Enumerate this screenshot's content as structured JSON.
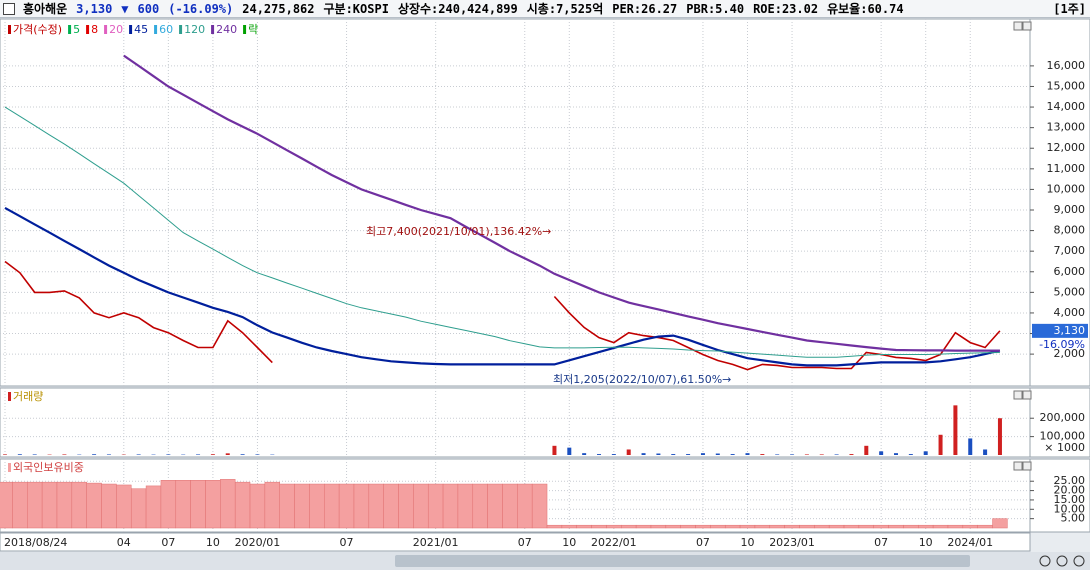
{
  "header": {
    "name": "흥아해운",
    "price": "3,130",
    "arrow": "▼",
    "change": "600",
    "change_pct": "(-16.09%)",
    "volume": "24,275,862",
    "market": "구분:KOSPI",
    "listed": "상장수:240,424,899",
    "cap": "시총:7,525억",
    "per": "PER:26.27",
    "pbr": "PBR:5.40",
    "roe": "ROE:23.02",
    "reserve": "유보율:60.74",
    "period": "[1주]"
  },
  "chart_data": [
    {
      "type": "line",
      "legend": [
        {
          "name": "가격(수정)",
          "color": "#c00000"
        },
        {
          "name": "5",
          "color": "#00b050"
        },
        {
          "name": "8",
          "color": "#e00000"
        },
        {
          "name": "20",
          "color": "#e060c0"
        },
        {
          "name": "45",
          "color": "#001f9c"
        },
        {
          "name": "60",
          "color": "#33aadd"
        },
        {
          "name": "120",
          "color": "#2e9e8e"
        },
        {
          "name": "240",
          "color": "#7030a0"
        },
        {
          "name": "락",
          "color": "#00a000"
        }
      ],
      "series": [
        {
          "color": "#c00000",
          "values": [
            6500,
            5950,
            5000,
            5000,
            5070,
            4730,
            4000,
            3770,
            4000,
            3770,
            3290,
            3040,
            2660,
            2320,
            2320,
            3620,
            3040,
            2320,
            1590,
            null,
            null,
            null,
            null,
            null,
            null,
            null,
            null,
            null,
            null,
            null,
            null,
            null,
            null,
            null,
            null,
            null,
            null,
            4800,
            4000,
            3300,
            2800,
            2560,
            3040,
            2900,
            2800,
            2660,
            2320,
            1980,
            1690,
            1500,
            1250,
            1500,
            1450,
            1350,
            1350,
            1350,
            1300,
            1300,
            2080,
            1980,
            1840,
            1790,
            1690,
            1980,
            3040,
            2560,
            2320,
            3130
          ]
        },
        {
          "color": "#001f9c",
          "values": [
            9100,
            8700,
            8300,
            7900,
            7500,
            7100,
            6700,
            6300,
            5950,
            5600,
            5300,
            5000,
            4750,
            4500,
            4250,
            4050,
            3800,
            3400,
            3050,
            2800,
            2550,
            2320,
            2150,
            2000,
            1850,
            1750,
            1650,
            1600,
            1550,
            1520,
            1500,
            1500,
            1500,
            1500,
            1500,
            1500,
            1500,
            1500,
            1700,
            1900,
            2100,
            2300,
            2500,
            2700,
            2850,
            2900,
            2700,
            2450,
            2200,
            2000,
            1800,
            1700,
            1600,
            1500,
            1450,
            1450,
            1450,
            1500,
            1550,
            1600,
            1600,
            1600,
            1600,
            1650,
            1750,
            1850,
            2000,
            2170
          ]
        },
        {
          "color": "#2e9e8e",
          "values": [
            14000,
            13550,
            13100,
            12650,
            12200,
            11730,
            11250,
            10780,
            10300,
            9700,
            9100,
            8500,
            7900,
            7500,
            7100,
            6700,
            6300,
            5950,
            5700,
            5450,
            5200,
            4950,
            4700,
            4450,
            4250,
            4100,
            3950,
            3800,
            3600,
            3450,
            3300,
            3150,
            3000,
            2850,
            2650,
            2500,
            2350,
            2300,
            2300,
            2300,
            2320,
            2330,
            2330,
            2300,
            2280,
            2250,
            2200,
            2170,
            2150,
            2100,
            2050,
            2000,
            1950,
            1900,
            1850,
            1850,
            1850,
            1900,
            1950,
            1980,
            1980,
            1980,
            1980,
            2000,
            2030,
            2050,
            2070,
            2080
          ]
        },
        {
          "color": "#7030a0",
          "values": [
            null,
            null,
            null,
            null,
            null,
            null,
            null,
            null,
            16500,
            16000,
            15500,
            15000,
            14600,
            14200,
            13800,
            13400,
            13050,
            12700,
            12300,
            11900,
            11500,
            11100,
            10700,
            10350,
            10000,
            9750,
            9500,
            9250,
            9000,
            8800,
            8600,
            8200,
            7800,
            7400,
            7000,
            6650,
            6300,
            5900,
            5600,
            5300,
            5000,
            4750,
            4500,
            4330,
            4170,
            4000,
            3830,
            3670,
            3500,
            3360,
            3220,
            3080,
            2940,
            2800,
            2660,
            2580,
            2500,
            2420,
            2340,
            2270,
            2200,
            2190,
            2180,
            2180,
            2170,
            2170,
            2170,
            2170
          ]
        }
      ],
      "ylim": [
        500,
        17500
      ],
      "yticks": [
        {
          "value": 2000,
          "label": "2,000"
        },
        {
          "value": 3000,
          "label": "3,000"
        },
        {
          "value": 4000,
          "label": "4,000"
        },
        {
          "value": 5000,
          "label": "5,000"
        },
        {
          "value": 6000,
          "label": "6,000"
        },
        {
          "value": 7000,
          "label": "7,000"
        },
        {
          "value": 8000,
          "label": "8,000"
        },
        {
          "value": 9000,
          "label": "9,000"
        },
        {
          "value": 10000,
          "label": "10,000"
        },
        {
          "value": 11000,
          "label": "11,000"
        },
        {
          "value": 12000,
          "label": "12,000"
        },
        {
          "value": 13000,
          "label": "13,000"
        },
        {
          "value": 14000,
          "label": "14,000"
        },
        {
          "value": 15000,
          "label": "15,000"
        },
        {
          "value": 16000,
          "label": "16,000"
        }
      ],
      "annotations": [
        "최고7,400(2021/10/01),136.42%→",
        "최저1,205(2022/10/07),61.50%→"
      ],
      "last_label": "3,130",
      "change_label": "-16.09%",
      "grid": true
    },
    {
      "type": "bar",
      "title": "거래량",
      "unit": "× 1000",
      "color": "#d02020",
      "color_down": "#1a4fc0",
      "values": [
        3000,
        4000,
        3000,
        2000,
        3000,
        2000,
        4000,
        3000,
        2000,
        3000,
        2000,
        3000,
        2000,
        3000,
        4000,
        9000,
        4000,
        3000,
        2000,
        null,
        null,
        null,
        null,
        null,
        null,
        null,
        null,
        null,
        null,
        null,
        null,
        null,
        null,
        null,
        null,
        null,
        null,
        50000,
        40000,
        10000,
        5000,
        5000,
        30000,
        10000,
        8000,
        5000,
        5000,
        10000,
        8000,
        5000,
        10000,
        5000,
        3000,
        3000,
        3000,
        3000,
        3000,
        5000,
        50000,
        20000,
        10000,
        5000,
        20000,
        110000,
        270000,
        90000,
        30000,
        200000
      ],
      "ylim": [
        0,
        310000
      ],
      "yticks": [
        {
          "value": 100000,
          "label": "100,000"
        },
        {
          "value": 200000,
          "label": "200,000"
        }
      ],
      "grid": true
    },
    {
      "type": "bar",
      "title": "외국인보유비중",
      "color": "#f4a0a0",
      "categories": [
        "2018/08/24",
        null,
        null,
        null,
        null,
        null,
        null,
        null,
        "04",
        null,
        null,
        "07",
        null,
        null,
        "10",
        null,
        null,
        "2020/01",
        null,
        null,
        null,
        null,
        null,
        "07",
        null,
        null,
        null,
        null,
        null,
        "2021/01",
        null,
        null,
        null,
        null,
        null,
        "07",
        null,
        null,
        "10",
        null,
        null,
        "2022/01",
        null,
        null,
        null,
        null,
        null,
        "07",
        null,
        null,
        "10",
        null,
        null,
        "2023/01",
        null,
        null,
        null,
        null,
        null,
        "07",
        null,
        null,
        "10",
        null,
        null,
        "2024/01",
        null,
        null
      ],
      "values": [
        24.5,
        24.5,
        24.5,
        24.5,
        24.5,
        24.5,
        24,
        23.5,
        23,
        21,
        22.5,
        25.5,
        25.5,
        25.5,
        25.5,
        26,
        24.5,
        23.5,
        24.5,
        23.5,
        23.5,
        23.5,
        23.5,
        23.5,
        23.5,
        23.5,
        23.5,
        23.5,
        23.5,
        23.5,
        23.5,
        23.5,
        23.5,
        23.5,
        23.5,
        23.5,
        23.5,
        1.5,
        1.5,
        1.5,
        1.5,
        1.5,
        1.5,
        1.5,
        1.5,
        1.5,
        1.5,
        1.5,
        1.5,
        1.5,
        1.5,
        1.5,
        1.5,
        1.5,
        1.5,
        1.5,
        1.5,
        1.5,
        1.5,
        1.5,
        1.5,
        1.5,
        1.5,
        1.5,
        1.5,
        1.5,
        1.5,
        5
      ],
      "ylim": [
        0,
        31
      ],
      "yticks": [
        {
          "value": 5,
          "label": "5.00"
        },
        {
          "value": 10,
          "label": "10.00"
        },
        {
          "value": 15,
          "label": "15.00"
        },
        {
          "value": 20,
          "label": "20.00"
        },
        {
          "value": 25,
          "label": "25.00"
        }
      ],
      "grid": true
    }
  ]
}
